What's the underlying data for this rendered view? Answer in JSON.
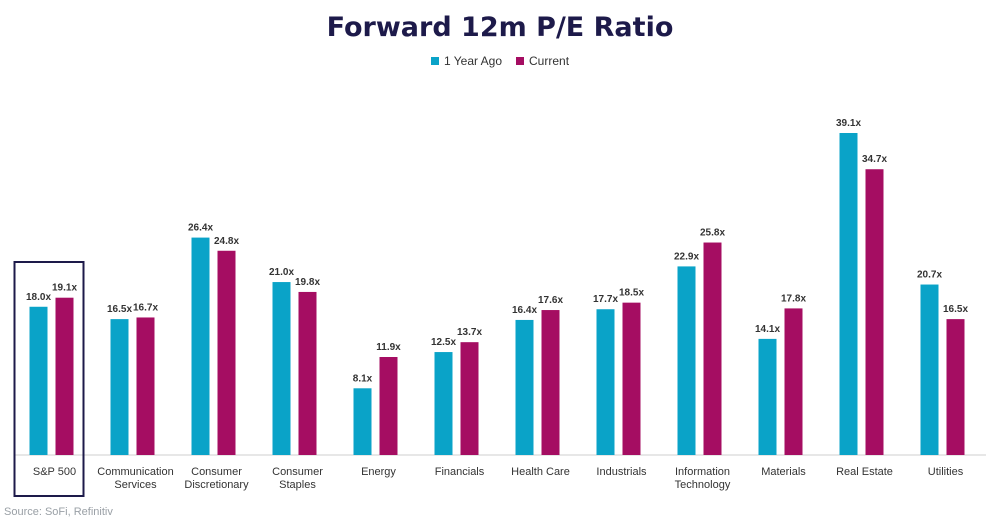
{
  "title": "Forward 12m P/E Ratio",
  "legend": [
    {
      "label": "1 Year Ago",
      "color": "#0aa3c8"
    },
    {
      "label": "Current",
      "color": "#a50d62"
    }
  ],
  "source": "Source: SoFi, Refinitiv",
  "highlight_category": "S&P 500",
  "chart_data": {
    "type": "bar",
    "title": "Forward 12m P/E Ratio",
    "categories": [
      [
        "S&P 500"
      ],
      [
        "Communication",
        "Services"
      ],
      [
        "Consumer",
        "Discretionary"
      ],
      [
        "Consumer",
        "Staples"
      ],
      [
        "Energy"
      ],
      [
        "Financials"
      ],
      [
        "Health Care"
      ],
      [
        "Industrials"
      ],
      [
        "Information",
        "Technology"
      ],
      [
        "Materials"
      ],
      [
        "Real Estate"
      ],
      [
        "Utilities"
      ]
    ],
    "series": [
      {
        "name": "1 Year Ago",
        "color": "#0aa3c8",
        "values": [
          18.0,
          16.5,
          26.4,
          21.0,
          8.1,
          12.5,
          16.4,
          17.7,
          22.9,
          14.1,
          39.1,
          20.7
        ]
      },
      {
        "name": "Current",
        "color": "#a50d62",
        "values": [
          19.1,
          16.7,
          24.8,
          19.8,
          11.9,
          13.7,
          17.6,
          18.5,
          25.8,
          17.8,
          34.7,
          16.5
        ]
      }
    ],
    "value_suffix": "x",
    "ylim": [
      0,
      40
    ],
    "grid": false,
    "legend_position": "top-center"
  }
}
